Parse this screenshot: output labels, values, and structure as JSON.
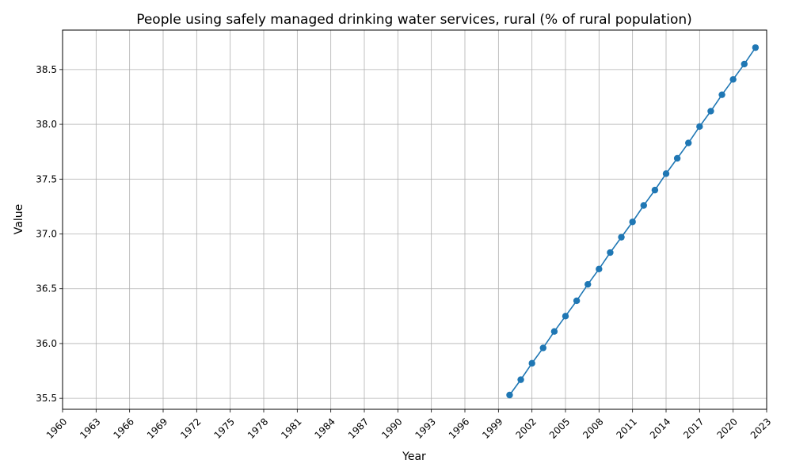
{
  "chart_data": {
    "type": "line",
    "title": "People using safely managed drinking water services, rural (% of rural population)",
    "xlabel": "Year",
    "ylabel": "Value",
    "xlim": [
      1960,
      2023
    ],
    "ylim": [
      35.4,
      38.86
    ],
    "x_ticks": [
      1960,
      1963,
      1966,
      1969,
      1972,
      1975,
      1978,
      1981,
      1984,
      1987,
      1990,
      1993,
      1996,
      1999,
      2002,
      2005,
      2008,
      2011,
      2014,
      2017,
      2020,
      2023
    ],
    "y_ticks": [
      35.5,
      36.0,
      36.5,
      37.0,
      37.5,
      38.0,
      38.5
    ],
    "y_tick_labels": [
      "35.5",
      "36.0",
      "36.5",
      "37.0",
      "37.5",
      "38.0",
      "38.5"
    ],
    "grid": true,
    "series": [
      {
        "color": "#1f77b4",
        "marker": "circle",
        "x": [
          2000,
          2001,
          2002,
          2003,
          2004,
          2005,
          2006,
          2007,
          2008,
          2009,
          2010,
          2011,
          2012,
          2013,
          2014,
          2015,
          2016,
          2017,
          2018,
          2019,
          2020,
          2021,
          2022
        ],
        "y": [
          35.53,
          35.67,
          35.82,
          35.96,
          36.11,
          36.25,
          36.39,
          36.54,
          36.68,
          36.83,
          36.97,
          37.11,
          37.26,
          37.4,
          37.55,
          37.69,
          37.83,
          37.98,
          38.12,
          38.27,
          38.41,
          38.55,
          38.7
        ]
      }
    ]
  }
}
